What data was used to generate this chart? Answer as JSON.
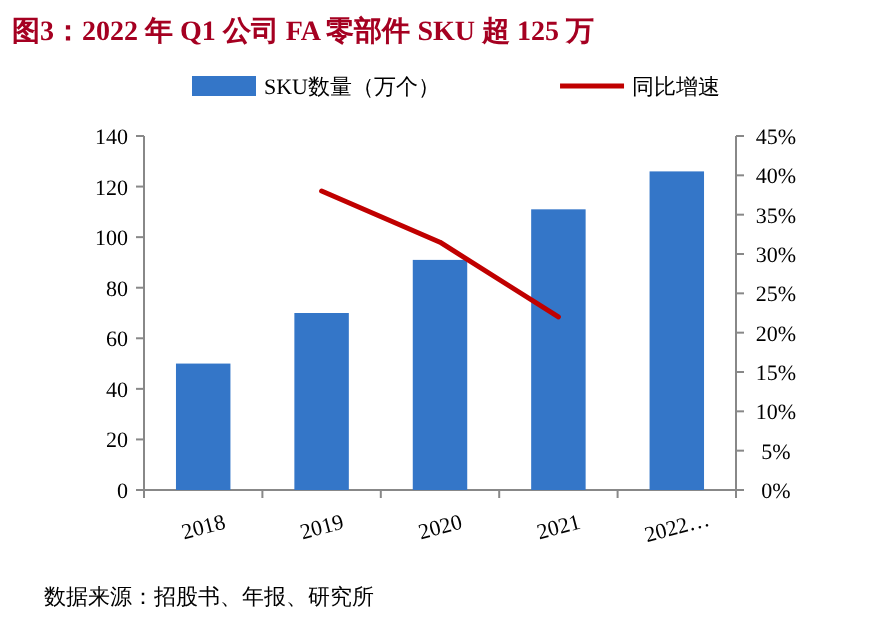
{
  "chart_data": {
    "type": "bar",
    "title": "图3：2022 年 Q1 公司 FA 零部件 SKU 超 125 万",
    "categories": [
      "2018",
      "2019",
      "2020",
      "2021",
      "2022…"
    ],
    "series": [
      {
        "name": "SKU数量（万个）",
        "color": "#3476c8",
        "values": [
          50,
          70,
          91,
          111,
          126
        ]
      },
      {
        "name": "同比增速",
        "type": "line",
        "axis": "y2",
        "color": "#c00000",
        "values": [
          null,
          38,
          31.5,
          22,
          null
        ]
      }
    ],
    "ylim": [
      0,
      140
    ],
    "yticks": [
      0,
      20,
      40,
      60,
      80,
      100,
      120,
      140
    ],
    "y2lim": [
      0,
      45
    ],
    "y2ticks": [
      {
        "value": 0,
        "label": "0%"
      },
      {
        "value": 5,
        "label": "5%"
      },
      {
        "value": 10,
        "label": "10%"
      },
      {
        "value": 15,
        "label": "15%"
      },
      {
        "value": 20,
        "label": "20%"
      },
      {
        "value": 25,
        "label": "25%"
      },
      {
        "value": 30,
        "label": "30%"
      },
      {
        "value": 35,
        "label": "35%"
      },
      {
        "value": 40,
        "label": "40%"
      },
      {
        "value": 45,
        "label": "45%"
      }
    ],
    "legend": "top",
    "grid": false,
    "annotations": [
      "数据来源：招股书、年报、研究所"
    ]
  }
}
